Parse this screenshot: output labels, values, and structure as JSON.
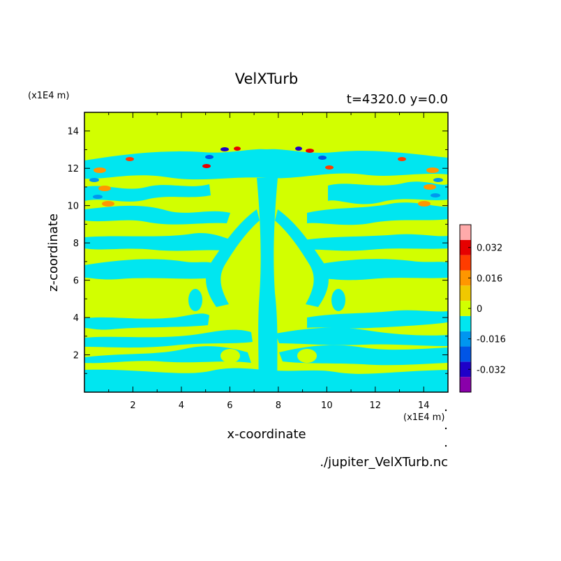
{
  "chart_data": {
    "type": "heatmap",
    "title": "VelXTurb",
    "subtitle": "t=4320.0 y=0.0",
    "xlabel": "x-coordinate",
    "ylabel": "z-coordinate",
    "x_unit": "(x1E4 m)",
    "y_unit": "(x1E4 m)",
    "footer": "./jupiter_VelXTurb.nc",
    "xlim": [
      0,
      15
    ],
    "ylim": [
      0,
      15
    ],
    "x_ticks": [
      "2",
      "4",
      "6",
      "8",
      "10",
      "12",
      "14"
    ],
    "y_ticks": [
      "2",
      "4",
      "6",
      "8",
      "10",
      "12",
      "14"
    ],
    "colorbar": {
      "levels": [
        -0.04,
        -0.032,
        -0.024,
        -0.016,
        -0.008,
        0,
        0.008,
        0.016,
        0.024,
        0.032,
        0.04
      ],
      "colors": [
        "#8a00aa",
        "#1e00c8",
        "#0055e6",
        "#0096f0",
        "#00e6f0",
        "#d2ff00",
        "#f0c800",
        "#ff9600",
        "#ff3c00",
        "#e60000",
        "#ffaaaa"
      ],
      "tick_labels": [
        "0.032",
        "0.016",
        "0",
        "-0.016",
        "-0.032"
      ]
    },
    "grid": false
  }
}
